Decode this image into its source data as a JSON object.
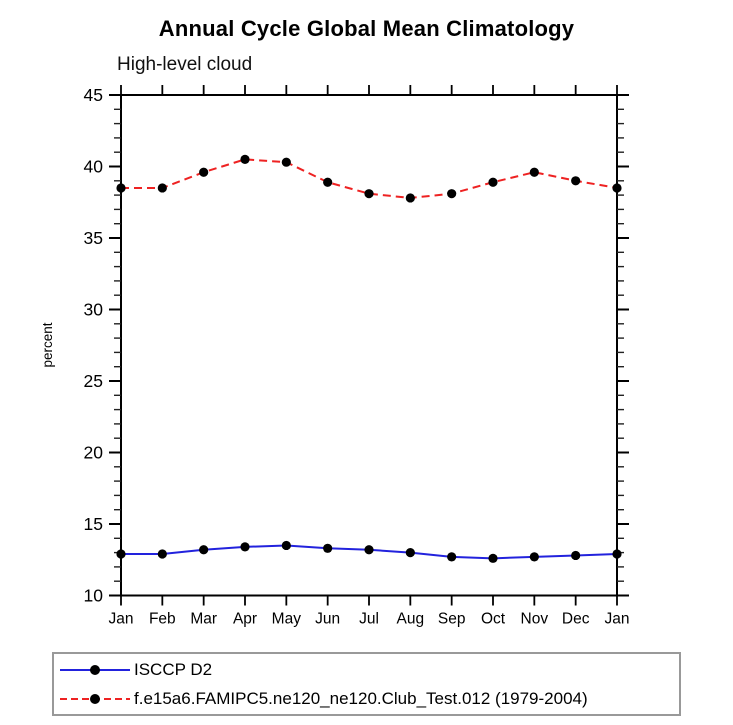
{
  "chart_data": {
    "type": "line",
    "title": "Annual Cycle Global Mean Climatology",
    "subtitle": "High-level cloud",
    "xlabel": "",
    "ylabel": "percent",
    "categories": [
      "Jan",
      "Feb",
      "Mar",
      "Apr",
      "May",
      "Jun",
      "Jul",
      "Aug",
      "Sep",
      "Oct",
      "Nov",
      "Dec",
      "Jan"
    ],
    "ylim": [
      10,
      45
    ],
    "y_major_step": 5,
    "y_minor_step": 1,
    "grid": false,
    "legend_position": "bottom",
    "axis_color": "#000000",
    "series": [
      {
        "name": "ISCCP D2",
        "color": "#2222dd",
        "line_style": "solid",
        "marker": "circle",
        "marker_color": "#000000",
        "values": [
          12.9,
          12.9,
          13.2,
          13.4,
          13.5,
          13.3,
          13.2,
          13.0,
          12.7,
          12.6,
          12.7,
          12.8,
          12.9
        ]
      },
      {
        "name": "f.e15a6.FAMIPC5.ne120_ne120.Club_Test.012 (1979-2004)",
        "color": "#ee2222",
        "line_style": "dashed",
        "marker": "circle",
        "marker_color": "#000000",
        "values": [
          38.5,
          38.5,
          39.6,
          40.5,
          40.3,
          38.9,
          38.1,
          37.8,
          38.1,
          38.9,
          39.6,
          39.0,
          38.5
        ]
      }
    ]
  }
}
